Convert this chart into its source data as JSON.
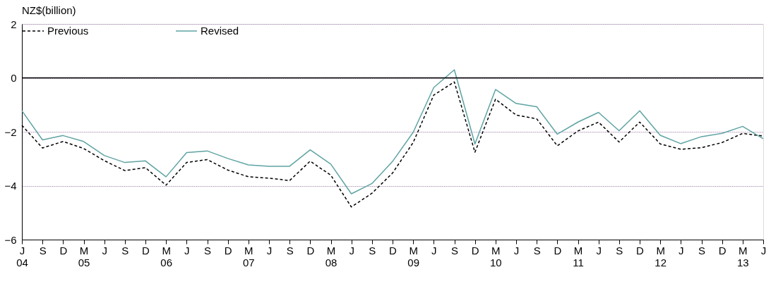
{
  "chart_data": {
    "type": "line",
    "ylabel": "NZ$(billion)",
    "categories": [
      "J\n04",
      "S",
      "D",
      "M\n05",
      "J",
      "S",
      "D",
      "M\n06",
      "J",
      "S",
      "D",
      "M\n07",
      "J",
      "S",
      "D",
      "M\n08",
      "J",
      "S",
      "D",
      "M\n09",
      "J",
      "S",
      "D",
      "M\n10",
      "J",
      "S",
      "D",
      "M\n11",
      "J",
      "S",
      "D",
      "M\n12",
      "J",
      "S",
      "D",
      "M\n13",
      "J"
    ],
    "series": [
      {
        "name": "Previous",
        "color": "#000000",
        "line_style": "dashed",
        "values": [
          -1.76,
          -2.6,
          -2.36,
          -2.62,
          -3.07,
          -3.44,
          -3.33,
          -3.98,
          -3.14,
          -3.03,
          -3.42,
          -3.67,
          -3.72,
          -3.81,
          -3.09,
          -3.61,
          -4.79,
          -4.28,
          -3.53,
          -2.4,
          -0.64,
          -0.15,
          -2.76,
          -0.79,
          -1.38,
          -1.52,
          -2.52,
          -1.97,
          -1.64,
          -2.38,
          -1.64,
          -2.45,
          -2.65,
          -2.59,
          -2.4,
          -2.06,
          -2.16
        ]
      },
      {
        "name": "Revised",
        "color": "#5fa3a3",
        "line_style": "solid",
        "values": [
          -1.22,
          -2.3,
          -2.14,
          -2.36,
          -2.88,
          -3.14,
          -3.08,
          -3.67,
          -2.77,
          -2.71,
          -2.99,
          -3.23,
          -3.28,
          -3.28,
          -2.67,
          -3.2,
          -4.3,
          -3.92,
          -3.1,
          -2.02,
          -0.36,
          0.3,
          -2.45,
          -0.43,
          -0.95,
          -1.07,
          -2.09,
          -1.64,
          -1.28,
          -1.96,
          -1.22,
          -2.13,
          -2.44,
          -2.18,
          -2.06,
          -1.8,
          -2.26
        ]
      }
    ],
    "ylim": [
      -6,
      2
    ],
    "yticks": [
      -6,
      -4,
      -2,
      0,
      2
    ],
    "grid": "y",
    "legend": "top",
    "ref_lines": [
      {
        "axis": "y",
        "value": 0,
        "color": "#000000"
      }
    ]
  }
}
